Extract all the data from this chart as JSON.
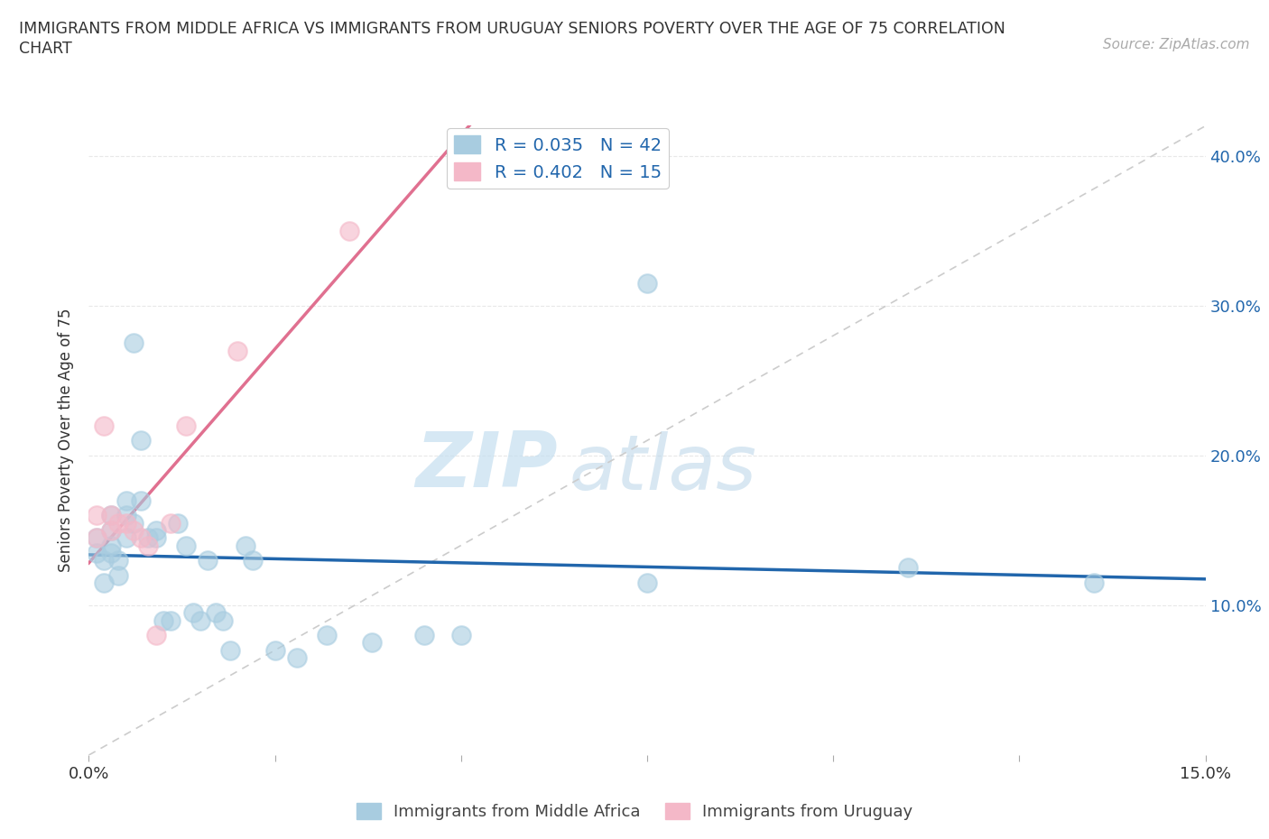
{
  "title_line1": "IMMIGRANTS FROM MIDDLE AFRICA VS IMMIGRANTS FROM URUGUAY SENIORS POVERTY OVER THE AGE OF 75 CORRELATION",
  "title_line2": "CHART",
  "source_text": "Source: ZipAtlas.com",
  "ylabel": "Seniors Poverty Over the Age of 75",
  "xlim": [
    0.0,
    0.15
  ],
  "ylim": [
    0.0,
    0.42
  ],
  "xticks": [
    0.0,
    0.025,
    0.05,
    0.075,
    0.1,
    0.125,
    0.15
  ],
  "xtick_labels": [
    "0.0%",
    "",
    "",
    "",
    "",
    "",
    "15.0%"
  ],
  "yticks": [
    0.1,
    0.2,
    0.3,
    0.4
  ],
  "ytick_labels": [
    "10.0%",
    "20.0%",
    "30.0%",
    "40.0%"
  ],
  "blue_color": "#a8cce0",
  "pink_color": "#f4b8c8",
  "trendline_blue": "#2166ac",
  "trendline_pink": "#e07090",
  "trendline_gray": "#cccccc",
  "R_blue": 0.035,
  "N_blue": 42,
  "R_pink": 0.402,
  "N_pink": 15,
  "blue_x": [
    0.001,
    0.001,
    0.002,
    0.002,
    0.003,
    0.003,
    0.003,
    0.003,
    0.004,
    0.004,
    0.005,
    0.005,
    0.005,
    0.006,
    0.006,
    0.007,
    0.007,
    0.008,
    0.009,
    0.009,
    0.01,
    0.011,
    0.012,
    0.013,
    0.014,
    0.015,
    0.016,
    0.017,
    0.018,
    0.019,
    0.021,
    0.022,
    0.025,
    0.028,
    0.032,
    0.038,
    0.045,
    0.05,
    0.075,
    0.075,
    0.11,
    0.135
  ],
  "blue_y": [
    0.145,
    0.135,
    0.13,
    0.115,
    0.16,
    0.15,
    0.14,
    0.135,
    0.13,
    0.12,
    0.17,
    0.16,
    0.145,
    0.155,
    0.275,
    0.17,
    0.21,
    0.145,
    0.15,
    0.145,
    0.09,
    0.09,
    0.155,
    0.14,
    0.095,
    0.09,
    0.13,
    0.095,
    0.09,
    0.07,
    0.14,
    0.13,
    0.07,
    0.065,
    0.08,
    0.075,
    0.08,
    0.08,
    0.315,
    0.115,
    0.125,
    0.115
  ],
  "pink_x": [
    0.001,
    0.001,
    0.002,
    0.003,
    0.003,
    0.004,
    0.005,
    0.006,
    0.007,
    0.008,
    0.009,
    0.011,
    0.013,
    0.02,
    0.035
  ],
  "pink_y": [
    0.16,
    0.145,
    0.22,
    0.16,
    0.15,
    0.155,
    0.155,
    0.15,
    0.145,
    0.14,
    0.08,
    0.155,
    0.22,
    0.27,
    0.35
  ],
  "watermark_zip": "ZIP",
  "watermark_atlas": "atlas",
  "background_color": "#ffffff",
  "grid_color": "#e8e8e8",
  "legend_label_color": "#2166ac"
}
